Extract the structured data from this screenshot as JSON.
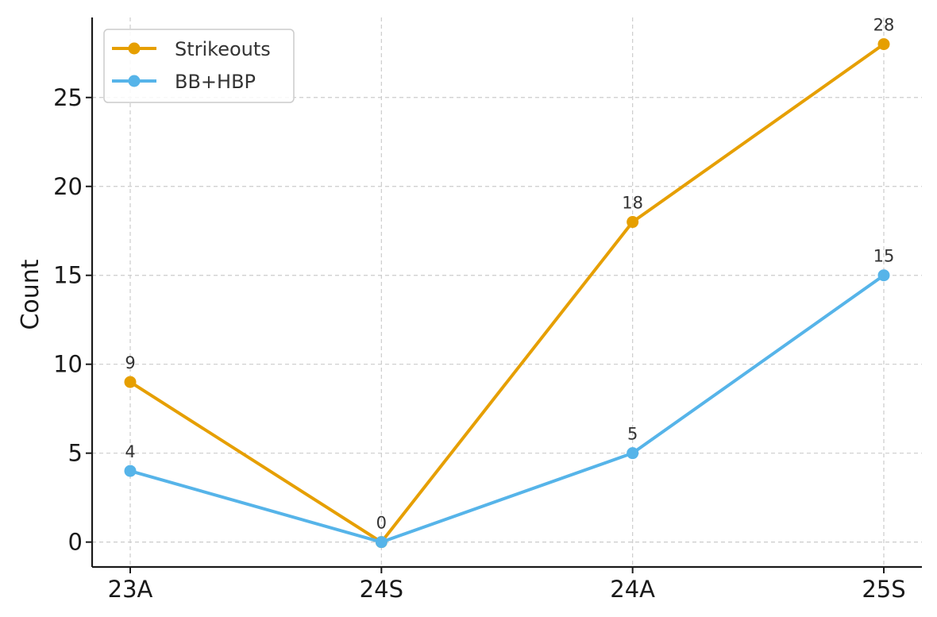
{
  "chart_data": {
    "type": "line",
    "title": "",
    "xlabel": "",
    "ylabel": "Count",
    "categories": [
      "23A",
      "24S",
      "24A",
      "25S"
    ],
    "series": [
      {
        "name": "Strikeouts",
        "values": [
          9,
          0,
          18,
          28
        ],
        "color": "#E69F00"
      },
      {
        "name": "BB+HBP",
        "values": [
          4,
          0,
          5,
          15
        ],
        "color": "#56B4E9"
      }
    ],
    "data_labels": [
      {
        "category": "23A",
        "text": "9",
        "series": "Strikeouts"
      },
      {
        "category": "23A",
        "text": "4",
        "series": "BB+HBP"
      },
      {
        "category": "24S",
        "text": "0",
        "series": "BB+HBP"
      },
      {
        "category": "24A",
        "text": "18",
        "series": "Strikeouts"
      },
      {
        "category": "24A",
        "text": "5",
        "series": "BB+HBP"
      },
      {
        "category": "25S",
        "text": "28",
        "series": "Strikeouts"
      },
      {
        "category": "25S",
        "text": "15",
        "series": "BB+HBP"
      }
    ],
    "yticks": [
      0,
      5,
      10,
      15,
      20,
      25
    ],
    "ylim": [
      -1.4,
      29.5
    ],
    "grid": true,
    "legend_position": "top-left"
  }
}
